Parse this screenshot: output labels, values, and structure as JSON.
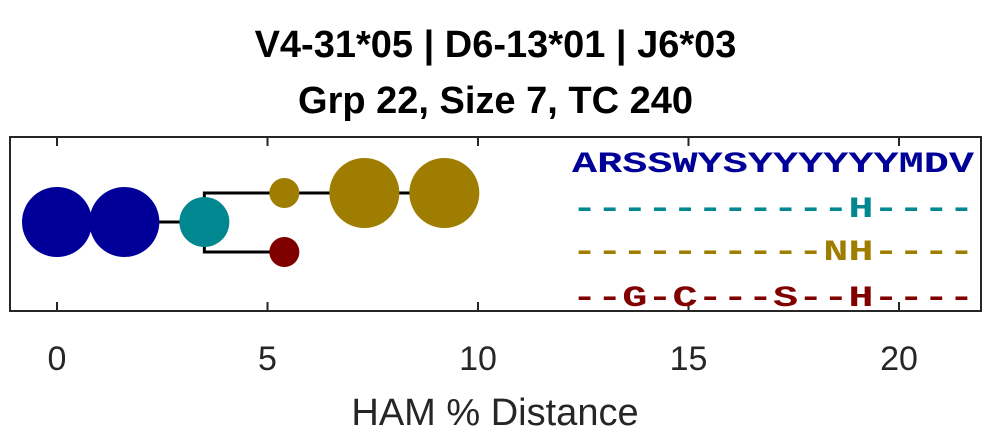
{
  "chart_data": {
    "type": "scatter",
    "title": "V4-31*05 | D6-13*01 | J6*03",
    "subtitle": "Grp 22, Size 7, TC 240",
    "xlabel": "HAM % Distance",
    "ylabel": "",
    "xlim": [
      -1.1,
      22
    ],
    "xticks": [
      0,
      5,
      10,
      15,
      20
    ],
    "grid": false,
    "nodes": [
      {
        "id": "n1",
        "x": 0.0,
        "level": 0,
        "size": 3,
        "color": "#000099"
      },
      {
        "id": "n2",
        "x": 1.6,
        "level": 0,
        "size": 3,
        "color": "#000099"
      },
      {
        "id": "n3",
        "x": 3.5,
        "level": 0,
        "size": 2,
        "color": "#00878F"
      },
      {
        "id": "n4",
        "x": 5.4,
        "level": 1,
        "size": 1,
        "color": "#9E7D00"
      },
      {
        "id": "n5",
        "x": 7.3,
        "level": 1,
        "size": 3,
        "color": "#9E7D00"
      },
      {
        "id": "n6",
        "x": 9.2,
        "level": 1,
        "size": 3,
        "color": "#9E7D00"
      },
      {
        "id": "n7",
        "x": 5.4,
        "level": -1,
        "size": 1,
        "color": "#800000"
      }
    ],
    "edges": [
      [
        "n1",
        "n2"
      ],
      [
        "n2",
        "n3"
      ],
      [
        "n3",
        "n4"
      ],
      [
        "n4",
        "n5"
      ],
      [
        "n5",
        "n6"
      ],
      [
        "n3",
        "n7"
      ]
    ],
    "sequences": [
      {
        "text": "ARSSWYSYYYYYYMDV",
        "color": "#000099"
      },
      {
        "text": "-----------H----",
        "color": "#00878F"
      },
      {
        "text": "----------NH----",
        "color": "#9E7D00"
      },
      {
        "text": "--G-C---S--H----",
        "color": "#800000"
      }
    ]
  }
}
